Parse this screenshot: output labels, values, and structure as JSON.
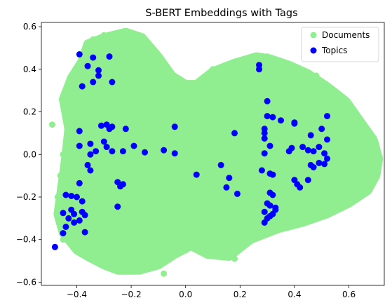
{
  "chart_data": {
    "type": "scatter",
    "title": "S-BERT Embeddings with Tags",
    "xlabel": "",
    "ylabel": "",
    "xlim": [
      -0.53,
      0.73
    ],
    "ylim": [
      -0.615,
      0.62
    ],
    "x_ticks": [
      "−0.4",
      "−0.2",
      "0.0",
      "0.2",
      "0.4",
      "0.6"
    ],
    "x_tick_values": [
      -0.4,
      -0.2,
      0.0,
      0.2,
      0.4,
      0.6
    ],
    "y_ticks": [
      "−0.6",
      "−0.4",
      "−0.2",
      "0.0",
      "0.2",
      "0.4",
      "0.6"
    ],
    "y_tick_values": [
      -0.6,
      -0.4,
      -0.2,
      0.0,
      0.2,
      0.4,
      0.6
    ],
    "grid": false,
    "legend_position": "top-right",
    "documents_region": [
      [
        -0.43,
        0.12
      ],
      [
        -0.45,
        0.26
      ],
      [
        -0.42,
        0.36
      ],
      [
        -0.38,
        0.44
      ],
      [
        -0.36,
        0.52
      ],
      [
        -0.3,
        0.55
      ],
      [
        -0.22,
        0.575
      ],
      [
        -0.16,
        0.55
      ],
      [
        -0.1,
        0.46
      ],
      [
        -0.05,
        0.37
      ],
      [
        0.0,
        0.33
      ],
      [
        0.04,
        0.33
      ],
      [
        0.1,
        0.39
      ],
      [
        0.18,
        0.43
      ],
      [
        0.26,
        0.46
      ],
      [
        0.31,
        0.45
      ],
      [
        0.38,
        0.42
      ],
      [
        0.45,
        0.38
      ],
      [
        0.52,
        0.32
      ],
      [
        0.59,
        0.25
      ],
      [
        0.64,
        0.16
      ],
      [
        0.69,
        0.07
      ],
      [
        0.71,
        -0.02
      ],
      [
        0.7,
        -0.1
      ],
      [
        0.67,
        -0.17
      ],
      [
        0.6,
        -0.23
      ],
      [
        0.52,
        -0.28
      ],
      [
        0.43,
        -0.32
      ],
      [
        0.34,
        -0.35
      ],
      [
        0.24,
        -0.4
      ],
      [
        0.16,
        -0.48
      ],
      [
        0.08,
        -0.47
      ],
      [
        0.02,
        -0.43
      ],
      [
        -0.04,
        -0.47
      ],
      [
        -0.1,
        -0.52
      ],
      [
        -0.17,
        -0.545
      ],
      [
        -0.25,
        -0.545
      ],
      [
        -0.3,
        -0.52
      ],
      [
        -0.36,
        -0.48
      ],
      [
        -0.4,
        -0.45
      ],
      [
        -0.45,
        -0.37
      ],
      [
        -0.47,
        -0.28
      ],
      [
        -0.45,
        -0.1
      ],
      [
        -0.44,
        0.0
      ]
    ],
    "series": [
      {
        "name": "Documents",
        "color": "#90ee90",
        "values": [
          [
            -0.49,
            0.14
          ],
          [
            -0.44,
            0.28
          ],
          [
            -0.42,
            0.33
          ],
          [
            -0.36,
            0.52
          ],
          [
            -0.34,
            0.54
          ],
          [
            -0.3,
            0.56
          ],
          [
            -0.24,
            0.565
          ],
          [
            -0.19,
            0.55
          ],
          [
            -0.14,
            0.5
          ],
          [
            -0.08,
            0.4
          ],
          [
            -0.04,
            0.36
          ],
          [
            0.1,
            0.4
          ],
          [
            0.2,
            0.44
          ],
          [
            0.3,
            0.46
          ],
          [
            0.4,
            0.41
          ],
          [
            0.48,
            0.37
          ],
          [
            0.56,
            0.28
          ],
          [
            0.63,
            0.18
          ],
          [
            0.7,
            0.05
          ],
          [
            0.71,
            -0.03
          ],
          [
            0.69,
            -0.13
          ],
          [
            0.64,
            -0.19
          ],
          [
            0.58,
            -0.24
          ],
          [
            0.47,
            -0.3
          ],
          [
            0.4,
            -0.33
          ],
          [
            0.31,
            -0.37
          ],
          [
            0.22,
            -0.42
          ],
          [
            0.18,
            -0.49
          ],
          [
            0.13,
            -0.47
          ],
          [
            0.06,
            -0.45
          ],
          [
            0.0,
            -0.45
          ],
          [
            -0.06,
            -0.48
          ],
          [
            -0.08,
            -0.56
          ],
          [
            -0.12,
            -0.52
          ],
          [
            -0.18,
            -0.53
          ],
          [
            -0.24,
            -0.54
          ],
          [
            -0.31,
            -0.51
          ],
          [
            -0.38,
            -0.47
          ],
          [
            -0.45,
            -0.4
          ],
          [
            -0.46,
            -0.27
          ],
          [
            -0.47,
            -0.2
          ],
          [
            -0.46,
            -0.1
          ],
          [
            -0.45,
            0.0
          ]
        ]
      },
      {
        "name": "Topics",
        "color": "#0000ff",
        "values": [
          [
            -0.39,
            0.47
          ],
          [
            -0.36,
            0.415
          ],
          [
            -0.34,
            0.455
          ],
          [
            -0.32,
            0.395
          ],
          [
            -0.32,
            0.37
          ],
          [
            -0.28,
            0.46
          ],
          [
            -0.27,
            0.34
          ],
          [
            -0.38,
            0.32
          ],
          [
            -0.34,
            0.34
          ],
          [
            -0.35,
            0.05
          ],
          [
            -0.39,
            0.11
          ],
          [
            -0.39,
            0.04
          ],
          [
            -0.35,
            0.0
          ],
          [
            -0.33,
            0.015
          ],
          [
            -0.31,
            0.135
          ],
          [
            -0.29,
            0.14
          ],
          [
            -0.28,
            0.12
          ],
          [
            -0.27,
            0.13
          ],
          [
            -0.3,
            0.06
          ],
          [
            -0.29,
            0.035
          ],
          [
            -0.27,
            0.015
          ],
          [
            -0.23,
            0.015
          ],
          [
            -0.22,
            0.12
          ],
          [
            -0.19,
            0.04
          ],
          [
            -0.15,
            0.01
          ],
          [
            -0.08,
            0.02
          ],
          [
            -0.04,
            0.13
          ],
          [
            -0.04,
            0.005
          ],
          [
            -0.25,
            -0.13
          ],
          [
            -0.23,
            -0.14
          ],
          [
            -0.24,
            -0.15
          ],
          [
            -0.25,
            -0.245
          ],
          [
            -0.36,
            -0.05
          ],
          [
            -0.35,
            -0.075
          ],
          [
            -0.39,
            -0.135
          ],
          [
            -0.38,
            -0.22
          ],
          [
            -0.44,
            -0.19
          ],
          [
            -0.42,
            -0.195
          ],
          [
            -0.4,
            -0.2
          ],
          [
            -0.42,
            -0.26
          ],
          [
            -0.41,
            -0.28
          ],
          [
            -0.38,
            -0.27
          ],
          [
            -0.37,
            -0.285
          ],
          [
            -0.43,
            -0.3
          ],
          [
            -0.41,
            -0.32
          ],
          [
            -0.39,
            -0.31
          ],
          [
            -0.44,
            -0.34
          ],
          [
            -0.45,
            -0.37
          ],
          [
            -0.37,
            -0.365
          ],
          [
            -0.45,
            -0.275
          ],
          [
            -0.48,
            -0.435
          ],
          [
            0.04,
            -0.095
          ],
          [
            0.13,
            -0.05
          ],
          [
            0.16,
            -0.11
          ],
          [
            0.15,
            -0.155
          ],
          [
            0.19,
            -0.185
          ],
          [
            0.18,
            0.1
          ],
          [
            0.27,
            0.42
          ],
          [
            0.27,
            0.4
          ],
          [
            0.3,
            0.25
          ],
          [
            0.29,
            0.12
          ],
          [
            0.29,
            0.1
          ],
          [
            0.29,
            0.075
          ],
          [
            0.3,
            0.18
          ],
          [
            0.32,
            0.175
          ],
          [
            0.35,
            0.16
          ],
          [
            0.31,
            0.04
          ],
          [
            0.29,
            0.005
          ],
          [
            0.28,
            -0.075
          ],
          [
            0.31,
            -0.09
          ],
          [
            0.32,
            -0.095
          ],
          [
            0.31,
            -0.18
          ],
          [
            0.32,
            -0.19
          ],
          [
            0.3,
            -0.23
          ],
          [
            0.31,
            -0.24
          ],
          [
            0.33,
            -0.25
          ],
          [
            0.32,
            -0.28
          ],
          [
            0.33,
            -0.26
          ],
          [
            0.29,
            -0.27
          ],
          [
            0.29,
            -0.32
          ],
          [
            0.3,
            -0.3
          ],
          [
            0.31,
            -0.29
          ],
          [
            0.4,
            0.15
          ],
          [
            0.4,
            0.145
          ],
          [
            0.38,
            0.015
          ],
          [
            0.39,
            0.03
          ],
          [
            0.43,
            0.035
          ],
          [
            0.4,
            -0.12
          ],
          [
            0.41,
            -0.14
          ],
          [
            0.42,
            -0.155
          ],
          [
            0.45,
            -0.12
          ],
          [
            0.46,
            -0.05
          ],
          [
            0.47,
            -0.06
          ],
          [
            0.49,
            -0.04
          ],
          [
            0.45,
            0.02
          ],
          [
            0.46,
            0.09
          ],
          [
            0.47,
            0.015
          ],
          [
            0.49,
            0.035
          ],
          [
            0.51,
            -0.045
          ],
          [
            0.51,
            0.005
          ],
          [
            0.52,
            0.07
          ],
          [
            0.52,
            0.18
          ],
          [
            0.5,
            0.12
          ],
          [
            0.52,
            -0.02
          ]
        ]
      }
    ]
  }
}
